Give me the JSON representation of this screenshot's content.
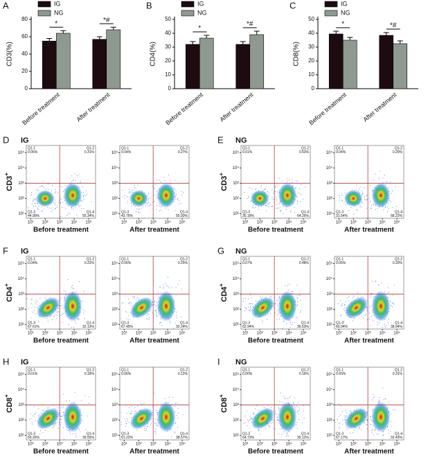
{
  "chart_data": [
    {
      "type": "bar",
      "panel": "A",
      "ylabel": "CD3(%)",
      "categories": [
        "Before treatment",
        "After treatment"
      ],
      "series": [
        {
          "name": "IG",
          "color": "#1e0b12",
          "values": [
            55,
            57
          ],
          "errors": [
            3,
            3
          ]
        },
        {
          "name": "NG",
          "color": "#8e998f",
          "values": [
            64,
            68
          ],
          "errors": [
            3,
            3
          ]
        }
      ],
      "ylim": [
        0,
        80
      ],
      "yticks": [
        0,
        20,
        40,
        60,
        80
      ],
      "annotations": [
        {
          "text": "*",
          "category": 0
        },
        {
          "text": "*#",
          "category": 1
        }
      ]
    },
    {
      "type": "bar",
      "panel": "B",
      "ylabel": "CD4(%)",
      "categories": [
        "Before treatment",
        "After treatment"
      ],
      "series": [
        {
          "name": "IG",
          "color": "#1e0b12",
          "values": [
            32,
            32
          ],
          "errors": [
            2,
            2
          ]
        },
        {
          "name": "NG",
          "color": "#8e998f",
          "values": [
            36.5,
            39
          ],
          "errors": [
            2,
            2.5
          ]
        }
      ],
      "ylim": [
        0,
        50
      ],
      "yticks": [
        0,
        10,
        20,
        30,
        40,
        50
      ],
      "annotations": [
        {
          "text": "*",
          "category": 0
        },
        {
          "text": "*#",
          "category": 1
        }
      ]
    },
    {
      "type": "bar",
      "panel": "C",
      "ylabel": "CD8(%)",
      "categories": [
        "Before treatment",
        "After treatment"
      ],
      "series": [
        {
          "name": "IG",
          "color": "#1e0b12",
          "values": [
            39.5,
            38.5
          ],
          "errors": [
            2,
            2
          ]
        },
        {
          "name": "NG",
          "color": "#8e998f",
          "values": [
            35,
            32.5
          ],
          "errors": [
            2,
            2
          ]
        }
      ],
      "ylim": [
        0,
        50
      ],
      "yticks": [
        0,
        10,
        20,
        30,
        40,
        50
      ],
      "annotations": [
        {
          "text": "*",
          "category": 0
        },
        {
          "text": "*#",
          "category": 1
        }
      ]
    }
  ],
  "flow_axis": {
    "lim": [
      5,
      300000
    ],
    "log": true,
    "gate": [
      1000,
      1000
    ],
    "ticks": [
      {
        "value": 10,
        "label": "10¹"
      },
      {
        "value": 100,
        "label": "10²"
      },
      {
        "value": 1000,
        "label": "10³"
      },
      {
        "value": 10000,
        "label": "10⁴"
      },
      {
        "value": 100000,
        "label": "10⁵"
      }
    ]
  },
  "flow_panels": [
    {
      "panel": "D",
      "group": "IG",
      "marker": "CD3",
      "marker_sup": "+",
      "plots": [
        {
          "xlabel": "Before treatment",
          "quadrants": [
            {
              "name": "Q1-1",
              "label": "0.05%"
            },
            {
              "name": "Q1-2",
              "label": "0.31%"
            },
            {
              "name": "Q1-3",
              "label": "44.90%"
            },
            {
              "name": "Q1-4",
              "label": "55.34%"
            }
          ]
        },
        {
          "xlabel": "After treatment",
          "quadrants": [
            {
              "name": "Q1-1",
              "label": "0.04%"
            },
            {
              "name": "Q1-2",
              "label": "0.27%"
            },
            {
              "name": "Q1-3",
              "label": "43.76%"
            },
            {
              "name": "Q1-4",
              "label": "55.93%"
            }
          ]
        }
      ]
    },
    {
      "panel": "E",
      "group": "NG",
      "marker": "CD3",
      "marker_sup": "+",
      "plots": [
        {
          "xlabel": "Before treatment",
          "quadrants": [
            {
              "name": "Q1-1",
              "label": "0.01%"
            },
            {
              "name": "Q1-2",
              "label": "0.53%"
            },
            {
              "name": "Q1-3",
              "label": "35.18%"
            },
            {
              "name": "Q1-4",
              "label": "64.26%"
            }
          ]
        },
        {
          "xlabel": "After treatment",
          "quadrants": [
            {
              "name": "Q1-1",
              "label": "0.04%"
            },
            {
              "name": "Q1-2",
              "label": "0.20%"
            },
            {
              "name": "Q1-3",
              "label": "31.54%"
            },
            {
              "name": "Q1-4",
              "label": "68.22%"
            }
          ]
        }
      ]
    },
    {
      "panel": "F",
      "group": "IG",
      "marker": "CD4",
      "marker_sup": "+",
      "plots": [
        {
          "xlabel": "Before treatment",
          "quadrants": [
            {
              "name": "Q1-1",
              "label": "0.04%"
            },
            {
              "name": "Q1-2",
              "label": "0.22%"
            },
            {
              "name": "Q1-3",
              "label": "67.61%"
            },
            {
              "name": "Q1-4",
              "label": "32.13%"
            }
          ]
        },
        {
          "xlabel": "After treatment",
          "quadrants": [
            {
              "name": "Q1-1",
              "label": "0.06%"
            },
            {
              "name": "Q1-2",
              "label": "0.25%"
            },
            {
              "name": "Q1-3",
              "label": "67.45%"
            },
            {
              "name": "Q1-4",
              "label": "32.24%"
            }
          ]
        }
      ]
    },
    {
      "panel": "G",
      "group": "NG",
      "marker": "CD4",
      "marker_sup": "+",
      "plots": [
        {
          "xlabel": "Before treatment",
          "quadrants": [
            {
              "name": "Q1-1",
              "label": "0.07%"
            },
            {
              "name": "Q1-2",
              "label": "0.48%"
            },
            {
              "name": "Q1-3",
              "label": "62.94%"
            },
            {
              "name": "Q1-4",
              "label": "36.53%"
            }
          ]
        },
        {
          "xlabel": "After treatment",
          "quadrants": [
            {
              "name": "Q1-1",
              "label": "0.05%"
            },
            {
              "name": "Q1-2",
              "label": "0.20%"
            },
            {
              "name": "Q1-3",
              "label": "60.94%"
            },
            {
              "name": "Q1-4",
              "label": "38.94%"
            }
          ]
        }
      ]
    },
    {
      "panel": "H",
      "group": "IG",
      "marker": "CD8",
      "marker_sup": "+",
      "plots": [
        {
          "xlabel": "Before treatment",
          "quadrants": [
            {
              "name": "Q1-1",
              "label": "0.01%"
            },
            {
              "name": "Q1-2",
              "label": "0.18%"
            },
            {
              "name": "Q1-3",
              "label": "60.26%"
            },
            {
              "name": "Q1-4",
              "label": "39.55%"
            }
          ]
        },
        {
          "xlabel": "After treatment",
          "quadrants": [
            {
              "name": "Q1-1",
              "label": "0.06%"
            },
            {
              "name": "Q1-2",
              "label": "0.12%"
            },
            {
              "name": "Q1-3",
              "label": "61.22%"
            },
            {
              "name": "Q1-4",
              "label": "38.57%"
            }
          ]
        }
      ]
    },
    {
      "panel": "I",
      "group": "NG",
      "marker": "CD8",
      "marker_sup": "+",
      "plots": [
        {
          "xlabel": "Before treatment",
          "quadrants": [
            {
              "name": "Q1-1",
              "label": "0.00%"
            },
            {
              "name": "Q1-2",
              "label": "0.16%"
            },
            {
              "name": "Q1-3",
              "label": "64.72%"
            },
            {
              "name": "Q1-4",
              "label": "35.12%"
            }
          ]
        },
        {
          "xlabel": "After treatment",
          "quadrants": [
            {
              "name": "Q1-1",
              "label": "0.05%"
            },
            {
              "name": "Q1-2",
              "label": "0.31%"
            },
            {
              "name": "Q1-3",
              "label": "67.17%"
            },
            {
              "name": "Q1-4",
              "label": "32.43%"
            }
          ]
        }
      ]
    }
  ]
}
